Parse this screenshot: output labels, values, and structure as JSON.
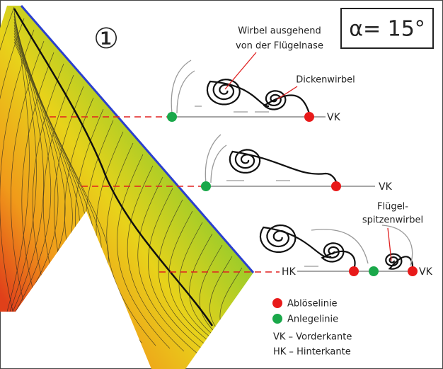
{
  "diagram": {
    "figure_number": "①",
    "angle_label": "α= 15°",
    "annotations": {
      "nose_vortex": [
        "Wirbel ausgehend",
        "von der Flügelnase"
      ],
      "thickness_vortex": "Dickenwirbel",
      "tip_vortex": [
        "Flügel-",
        "spitzenwirbel"
      ]
    },
    "sections": [
      {
        "right_label": "VK"
      },
      {
        "right_label": "VK"
      },
      {
        "left_label": "HK",
        "right_label": "VK"
      }
    ],
    "legend": {
      "separation": "Ablöselinie",
      "attachment": "Anlegelinie",
      "vk": "VK – Vorderkante",
      "hk": "HK – Hinterkante"
    }
  }
}
